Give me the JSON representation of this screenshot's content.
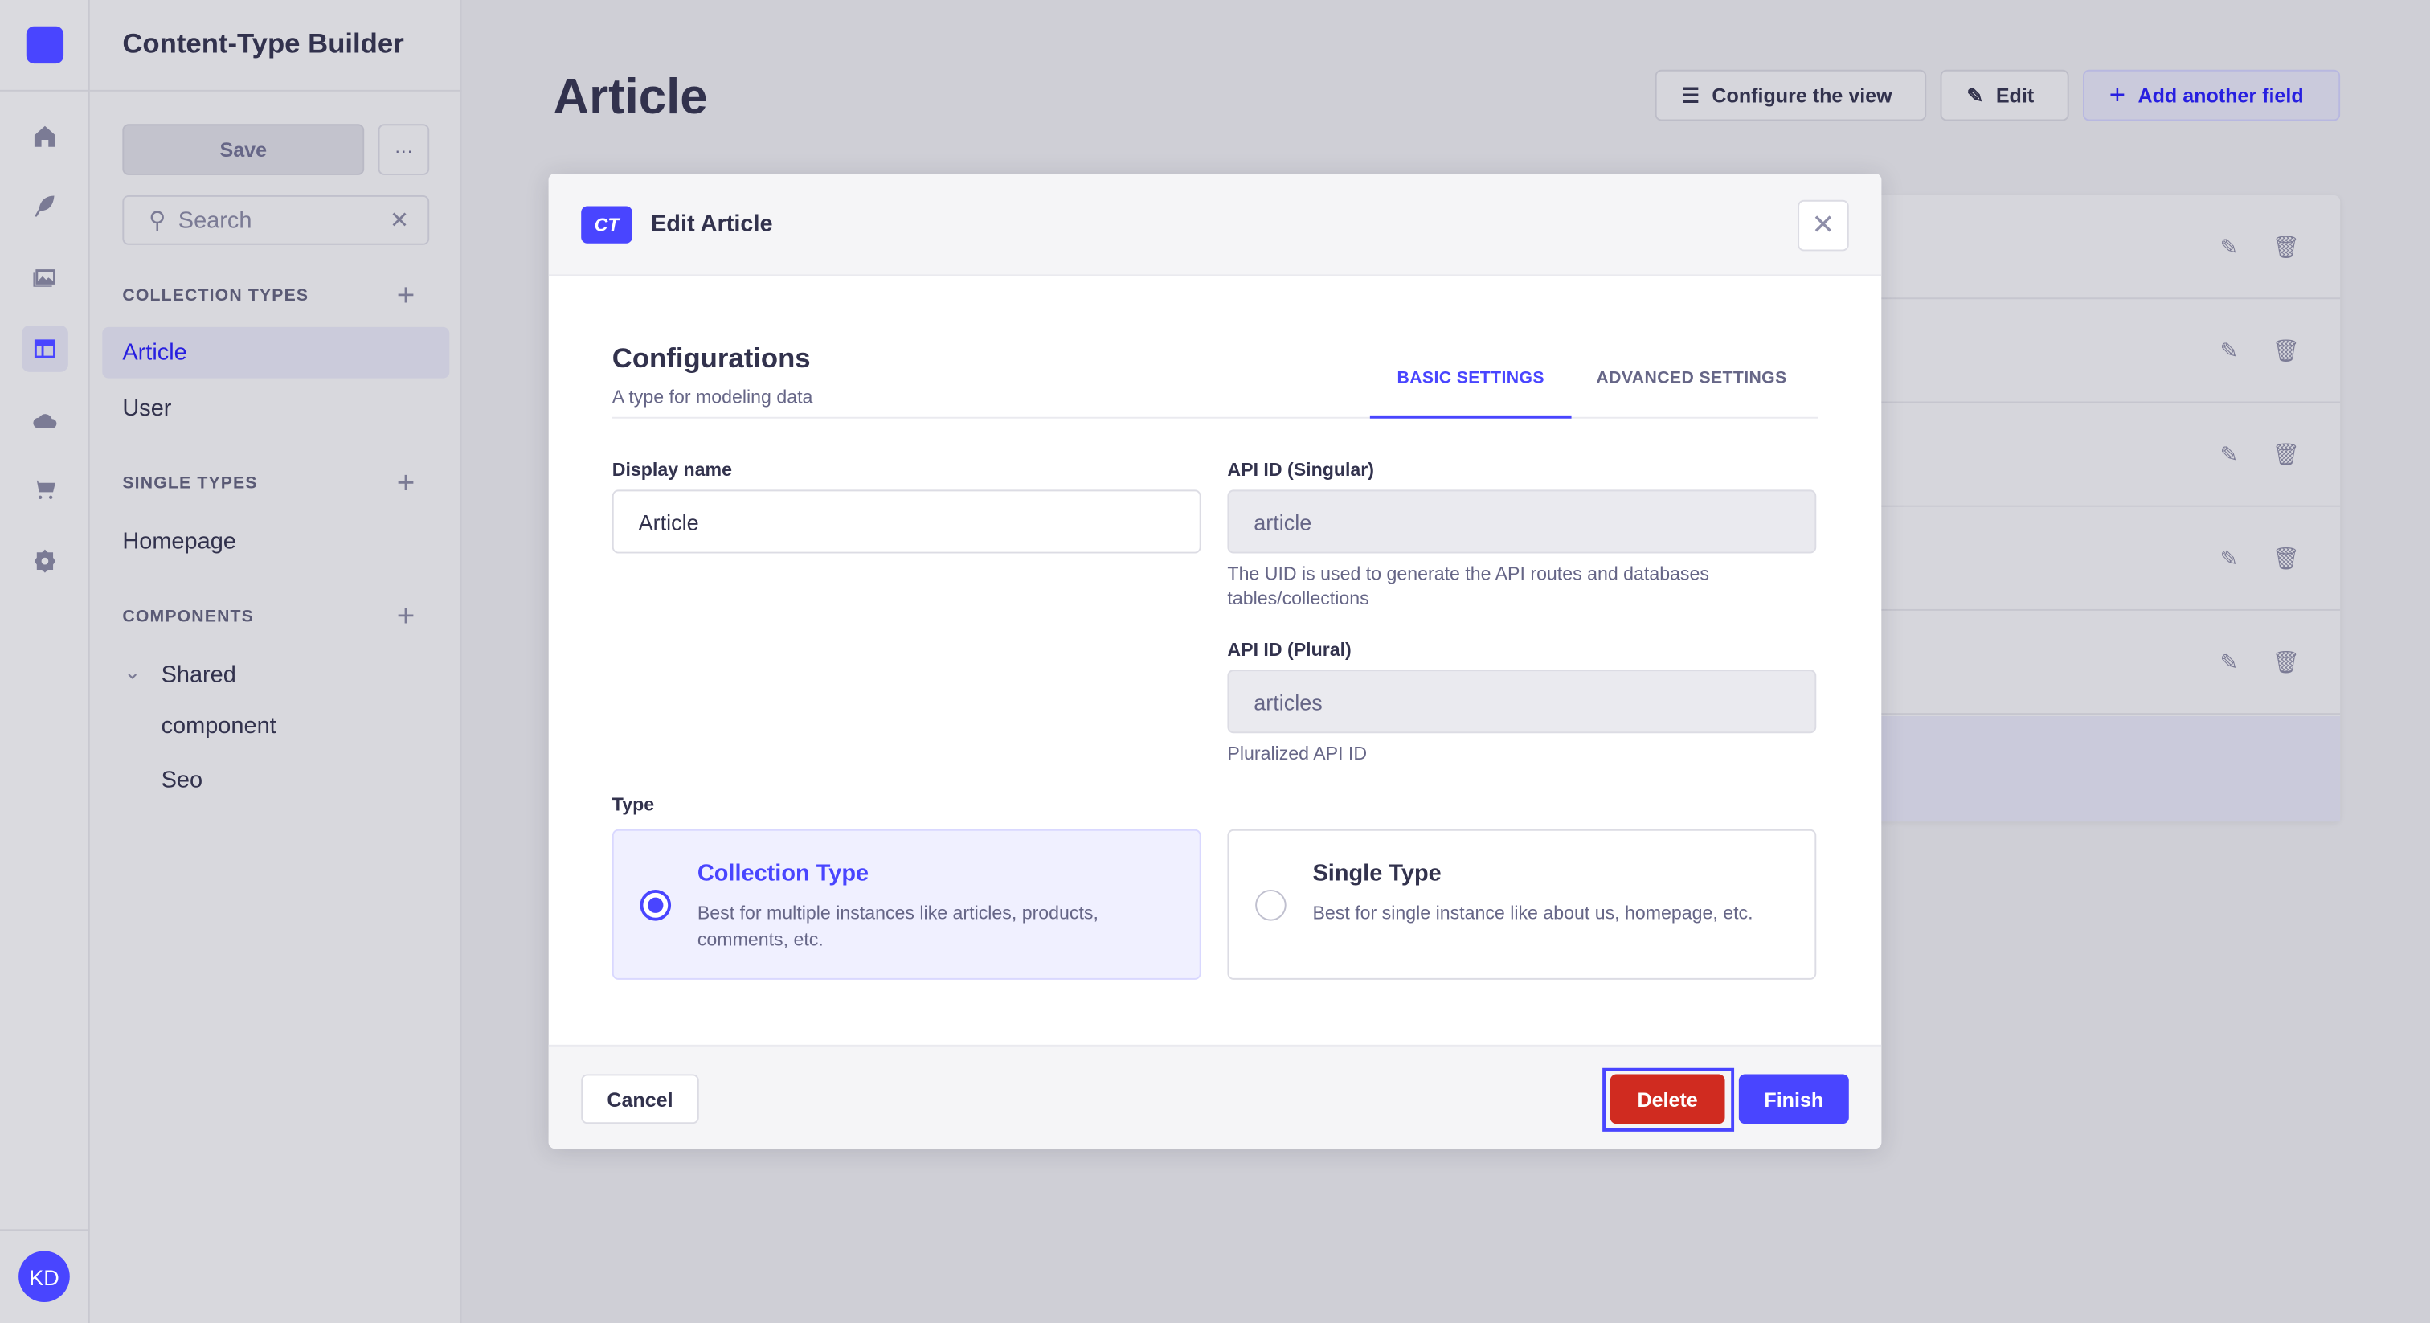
{
  "nav": {
    "icons": [
      "home-icon",
      "feather-icon",
      "media-icon",
      "layout-icon",
      "cloud-icon",
      "cart-icon",
      "gear-icon"
    ],
    "avatar_initials": "KD",
    "accent": "#4945ff"
  },
  "sidebar": {
    "title": "Content-Type Builder",
    "save_label": "Save",
    "more_label": "···",
    "search_placeholder": "Search",
    "collection_types": {
      "label": "COLLECTION TYPES",
      "items": [
        "Article",
        "User"
      ]
    },
    "single_types": {
      "label": "SINGLE TYPES",
      "items": [
        "Homepage"
      ]
    },
    "components": {
      "label": "COMPONENTS",
      "group": "Shared",
      "items": [
        "component",
        "Seo"
      ]
    }
  },
  "header": {
    "title": "Article",
    "configure_label": "Configure the view",
    "edit_label": "Edit",
    "add_field_label": "Add another field"
  },
  "modal": {
    "badge": "CT",
    "title": "Edit Article",
    "section_title": "Configurations",
    "section_subtitle": "A type for modeling data",
    "tabs": [
      "BASIC SETTINGS",
      "ADVANCED SETTINGS"
    ],
    "display_name": {
      "label": "Display name",
      "value": "Article"
    },
    "api_singular": {
      "label": "API ID (Singular)",
      "value": "article",
      "hint": "The UID is used to generate the API routes and databases tables/collections"
    },
    "api_plural": {
      "label": "API ID (Plural)",
      "value": "articles",
      "hint": "Pluralized API ID"
    },
    "type_label": "Type",
    "types": [
      {
        "title": "Collection Type",
        "desc": "Best for multiple instances like articles, products, comments, etc.",
        "selected": true
      },
      {
        "title": "Single Type",
        "desc": "Best for single instance like about us, homepage, etc.",
        "selected": false
      }
    ],
    "cancel_label": "Cancel",
    "delete_label": "Delete",
    "finish_label": "Finish",
    "delete_color": "#d02b20"
  }
}
